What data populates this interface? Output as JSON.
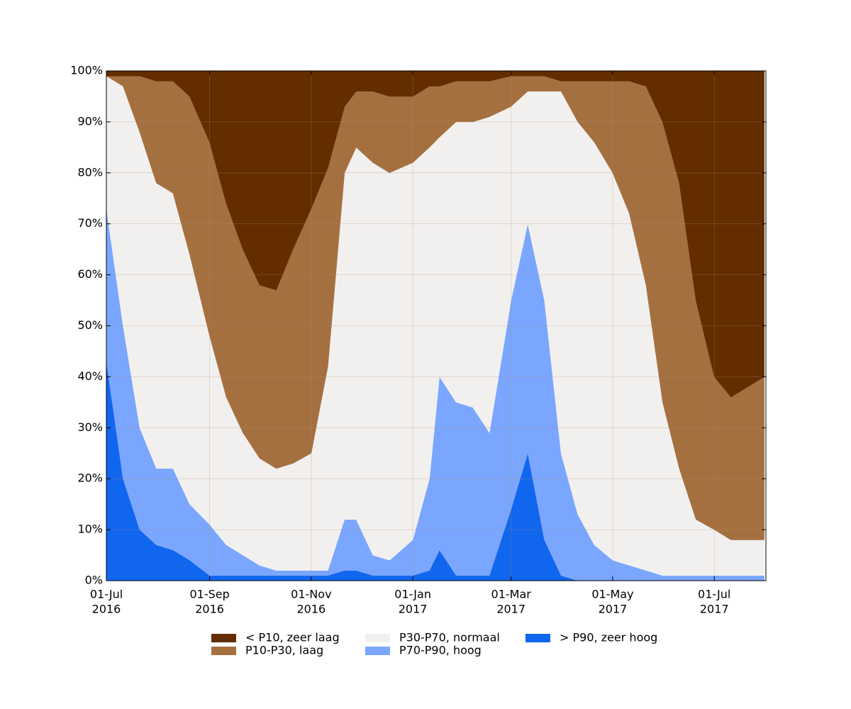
{
  "chart_data": {
    "type": "stacked_area",
    "x": [
      "2016-07-01",
      "2016-07-11",
      "2016-07-21",
      "2016-07-31",
      "2016-08-10",
      "2016-08-20",
      "2016-09-01",
      "2016-09-11",
      "2016-09-21",
      "2016-10-01",
      "2016-10-11",
      "2016-10-21",
      "2016-11-01",
      "2016-11-11",
      "2016-11-21",
      "2016-11-28",
      "2016-12-08",
      "2016-12-18",
      "2017-01-01",
      "2017-01-11",
      "2017-01-17",
      "2017-01-27",
      "2017-02-06",
      "2017-02-16",
      "2017-03-01",
      "2017-03-11",
      "2017-03-21",
      "2017-03-31",
      "2017-04-10",
      "2017-04-20",
      "2017-05-01",
      "2017-05-11",
      "2017-05-21",
      "2017-05-31",
      "2017-06-10",
      "2017-06-20",
      "2017-07-01",
      "2017-07-11",
      "2017-07-31"
    ],
    "series": [
      {
        "name": "< P10, zeer laag",
        "color": "#632d00",
        "values": [
          1,
          1,
          1,
          2,
          2,
          5,
          14,
          26,
          35,
          42,
          43,
          35,
          27,
          19,
          7,
          4,
          4,
          5,
          5,
          3,
          3,
          2,
          2,
          2,
          1,
          1,
          1,
          2,
          2,
          2,
          2,
          2,
          3,
          10,
          22,
          45,
          60,
          64,
          60
        ]
      },
      {
        "name": "P10-P30, laag",
        "color": "#a57040",
        "values": [
          0,
          2,
          11,
          20,
          22,
          31,
          38,
          38,
          36,
          34,
          35,
          42,
          48,
          39,
          13,
          11,
          14,
          15,
          13,
          12,
          10,
          8,
          8,
          7,
          6,
          3,
          3,
          2,
          8,
          12,
          18,
          26,
          39,
          55,
          56,
          43,
          30,
          28,
          32
        ]
      },
      {
        "name": "P30-P70, normaal",
        "color": "#f2f0ef",
        "values": [
          26,
          47,
          58,
          56,
          54,
          49,
          37,
          29,
          24,
          21,
          20,
          21,
          23,
          40,
          68,
          73,
          77,
          76,
          74,
          65,
          47,
          55,
          56,
          62,
          38,
          26,
          41,
          71,
          77,
          79,
          76,
          69,
          56,
          34,
          21,
          11,
          9,
          7,
          7
        ]
      },
      {
        "name": "P70-P90, hoog",
        "color": "#7aa6ff",
        "values": [
          30,
          30,
          20,
          15,
          16,
          11,
          10,
          6,
          4,
          2,
          1,
          1,
          1,
          1,
          10,
          10,
          4,
          3,
          7,
          18,
          34,
          34,
          33,
          28,
          41,
          45,
          47,
          24,
          13,
          7,
          4,
          3,
          2,
          1,
          1,
          1,
          1,
          1,
          1
        ]
      },
      {
        "name": "> P90, zeer hoog",
        "color": "#1166ee",
        "values": [
          43,
          20,
          10,
          7,
          6,
          4,
          1,
          1,
          1,
          1,
          1,
          1,
          1,
          1,
          2,
          2,
          1,
          1,
          1,
          2,
          6,
          1,
          1,
          1,
          14,
          25,
          8,
          1,
          0,
          0,
          0,
          0,
          0,
          0,
          0,
          0,
          0,
          0,
          0
        ]
      }
    ],
    "xlim": [
      "2016-07-01",
      "2017-08-01"
    ],
    "xticks": [
      {
        "value": "2016-07-01",
        "label": [
          "01-Jul",
          "2016"
        ]
      },
      {
        "value": "2016-09-01",
        "label": [
          "01-Sep",
          "2016"
        ]
      },
      {
        "value": "2016-11-01",
        "label": [
          "01-Nov",
          "2016"
        ]
      },
      {
        "value": "2017-01-01",
        "label": [
          "01-Jan",
          "2017"
        ]
      },
      {
        "value": "2017-03-01",
        "label": [
          "01-Mar",
          "2017"
        ]
      },
      {
        "value": "2017-05-01",
        "label": [
          "01-May",
          "2017"
        ]
      },
      {
        "value": "2017-07-01",
        "label": [
          "01-Jul",
          "2017"
        ]
      }
    ],
    "ylim": [
      0,
      100
    ],
    "yticks": [
      {
        "value": 0,
        "label": "0%"
      },
      {
        "value": 10,
        "label": "10%"
      },
      {
        "value": 20,
        "label": "20%"
      },
      {
        "value": 30,
        "label": "30%"
      },
      {
        "value": 40,
        "label": "40%"
      },
      {
        "value": 50,
        "label": "50%"
      },
      {
        "value": 60,
        "label": "60%"
      },
      {
        "value": 70,
        "label": "70%"
      },
      {
        "value": 80,
        "label": "80%"
      },
      {
        "value": 90,
        "label": "90%"
      },
      {
        "value": 100,
        "label": "100%"
      }
    ],
    "grid": true,
    "legend": "bottom"
  }
}
